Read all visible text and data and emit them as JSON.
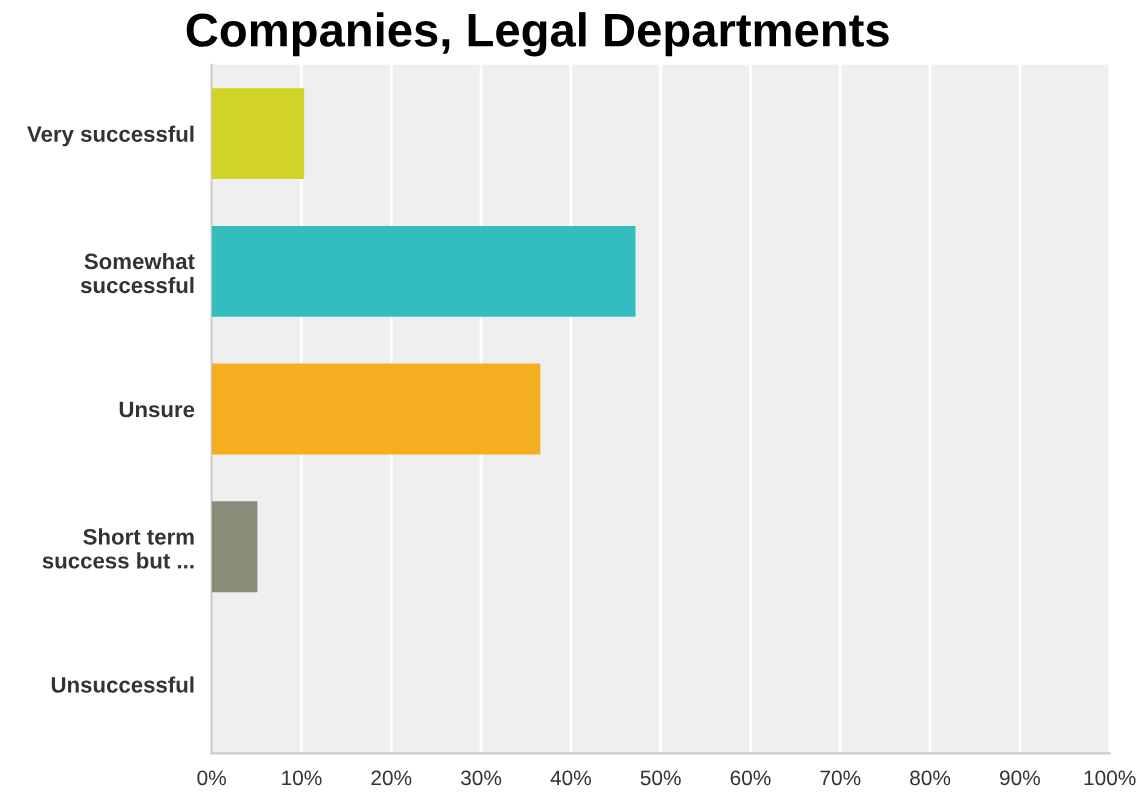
{
  "chart_data": {
    "type": "bar",
    "orientation": "horizontal",
    "title": "Companies, Legal Departments",
    "categories": [
      "Very successful",
      "Somewhat\nsuccessful",
      "Unsure",
      "Short term\nsuccess but ...",
      "Unsuccessful"
    ],
    "values": [
      10.3,
      47.2,
      36.6,
      5.1,
      0
    ],
    "colors": [
      "#d0d427",
      "#34bdbe",
      "#f5ae20",
      "#8c8c7a",
      "#a0a0a0"
    ],
    "xlim": [
      0,
      100
    ],
    "xticks": [
      {
        "value": 0,
        "label": "0%"
      },
      {
        "value": 10,
        "label": "10%"
      },
      {
        "value": 20,
        "label": "20%"
      },
      {
        "value": 30,
        "label": "30%"
      },
      {
        "value": 40,
        "label": "40%"
      },
      {
        "value": 50,
        "label": "50%"
      },
      {
        "value": 60,
        "label": "60%"
      },
      {
        "value": 70,
        "label": "70%"
      },
      {
        "value": 80,
        "label": "80%"
      },
      {
        "value": 90,
        "label": "90%"
      },
      {
        "value": 100,
        "label": "100%"
      }
    ],
    "grid": "x"
  }
}
